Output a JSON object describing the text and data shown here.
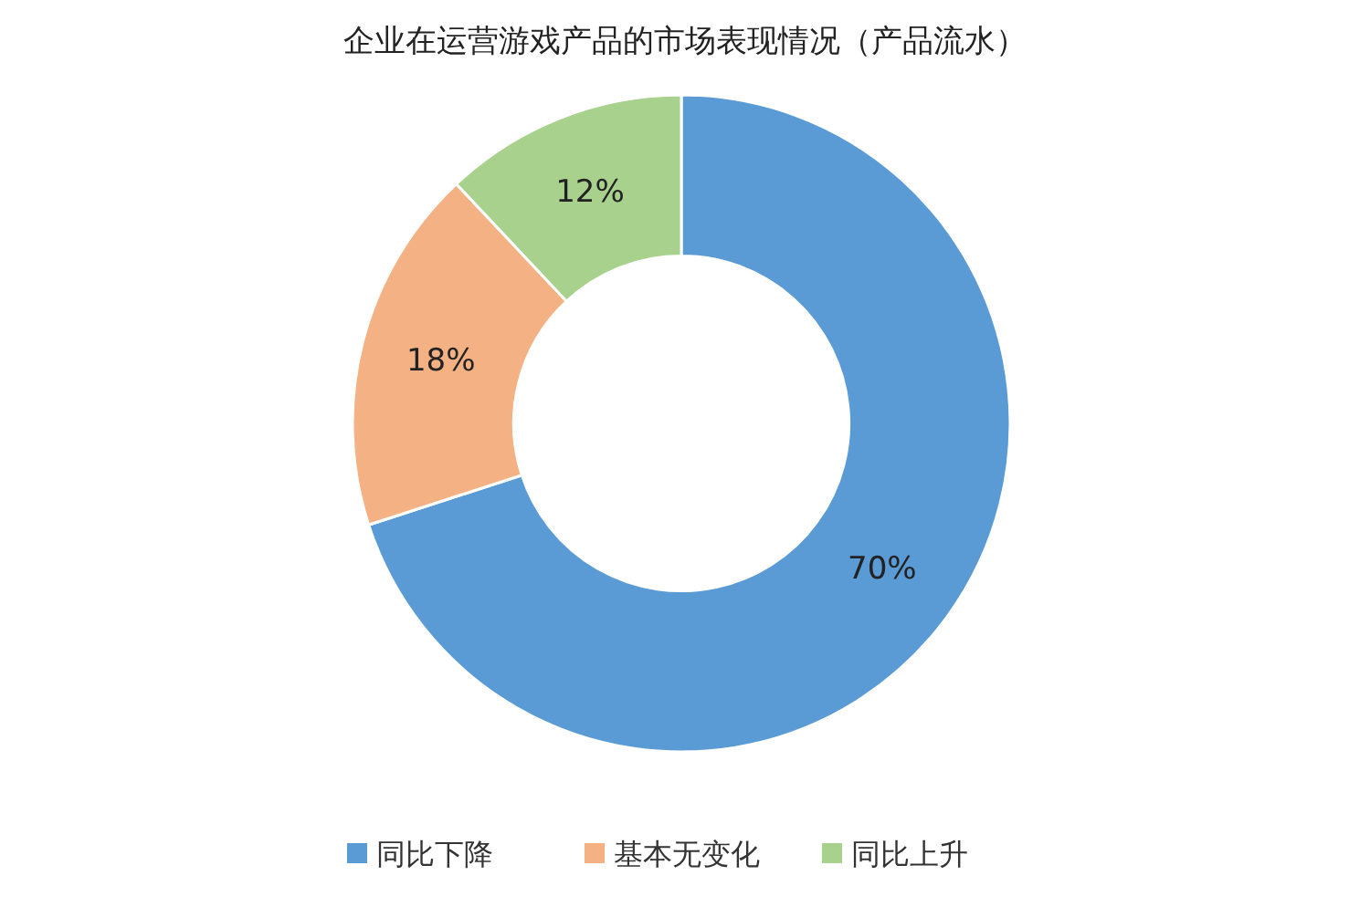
{
  "chart_data": {
    "type": "donut",
    "title": "企业在运营游戏产品的市场表现情况（产品流水）",
    "categories": [
      "同比下降",
      "基本无变化",
      "同比上升"
    ],
    "values": [
      70,
      18,
      12
    ],
    "colors": [
      "#5b9bd5",
      "#f4b183",
      "#a9d18e"
    ],
    "value_labels": [
      "70%",
      "18%",
      "12%"
    ],
    "legend": "bottom"
  }
}
